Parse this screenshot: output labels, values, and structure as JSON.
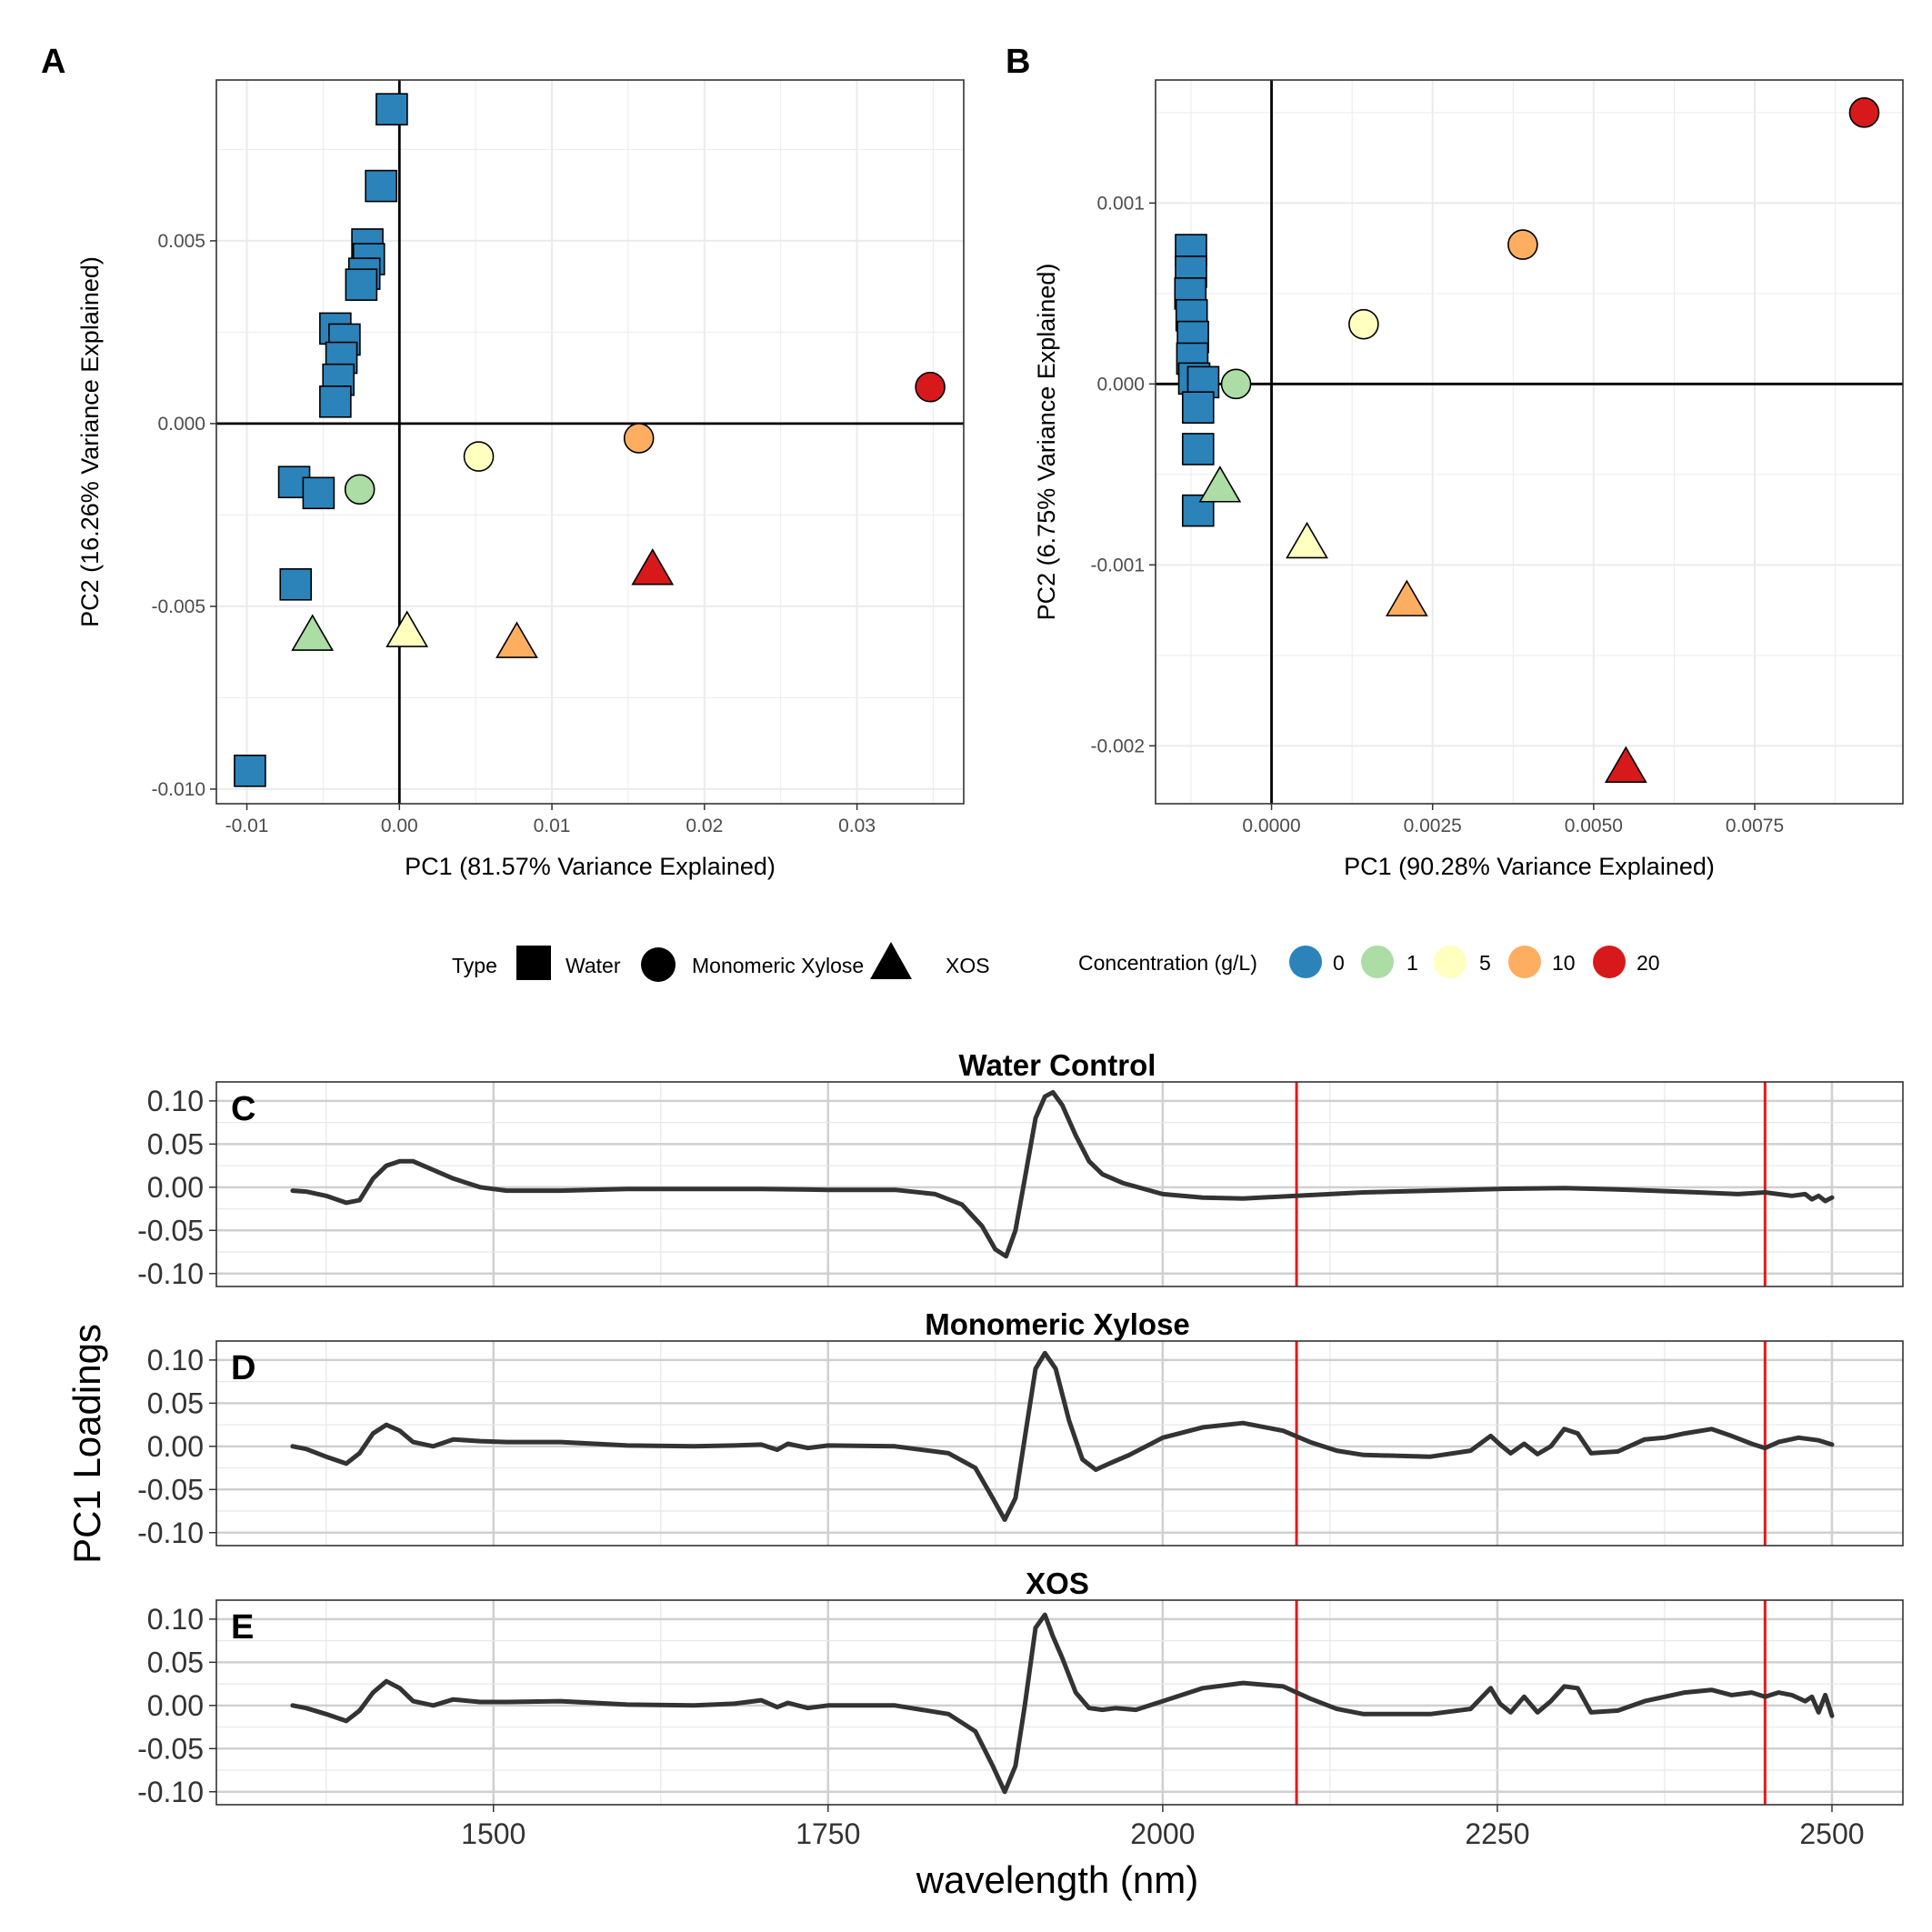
{
  "colors": {
    "conc_0": "#2b83ba",
    "conc_1": "#abdda4",
    "conc_5": "#ffffbf",
    "conc_10": "#fdae61",
    "conc_20": "#d7191c",
    "loading_line": "#333333",
    "marker_line": "#e31a1c"
  },
  "legend": {
    "type_title": "Type",
    "type_items": [
      {
        "label": "Water",
        "shape": "square"
      },
      {
        "label": "Monomeric Xylose",
        "shape": "circle"
      },
      {
        "label": "XOS",
        "shape": "triangle"
      }
    ],
    "conc_title": "Concentration (g/L)",
    "conc_items": [
      {
        "label": "0",
        "key": "conc_0"
      },
      {
        "label": "1",
        "key": "conc_1"
      },
      {
        "label": "5",
        "key": "conc_5"
      },
      {
        "label": "10",
        "key": "conc_10"
      },
      {
        "label": "20",
        "key": "conc_20"
      }
    ]
  },
  "chart_data": [
    {
      "panel": "A",
      "type": "scatter",
      "xlabel": "PC1 (81.57% Variance Explained)",
      "ylabel": "PC2 (16.26% Variance Explained)",
      "xlim": [
        -0.012,
        0.037
      ],
      "ylim": [
        -0.0104,
        0.0094
      ],
      "xticks": [
        -0.01,
        0.0,
        0.01,
        0.02,
        0.03
      ],
      "xtick_labels": [
        "-0.01",
        "0.00",
        "0.01",
        "0.02",
        "0.03"
      ],
      "yticks": [
        -0.01,
        -0.005,
        0.0,
        0.005
      ],
      "ytick_labels": [
        "-0.010",
        "-0.005",
        "0.000",
        "0.005"
      ],
      "grid": true,
      "points": [
        {
          "x": -0.0005,
          "y": 0.0086,
          "type": "Water",
          "conc": "0"
        },
        {
          "x": -0.0012,
          "y": 0.0065,
          "type": "Water",
          "conc": "0"
        },
        {
          "x": -0.0021,
          "y": 0.0049,
          "type": "Water",
          "conc": "0"
        },
        {
          "x": -0.002,
          "y": 0.0045,
          "type": "Water",
          "conc": "0"
        },
        {
          "x": -0.0023,
          "y": 0.0041,
          "type": "Water",
          "conc": "0"
        },
        {
          "x": -0.0025,
          "y": 0.0038,
          "type": "Water",
          "conc": "0"
        },
        {
          "x": -0.0042,
          "y": 0.0026,
          "type": "Water",
          "conc": "0"
        },
        {
          "x": -0.0036,
          "y": 0.0023,
          "type": "Water",
          "conc": "0"
        },
        {
          "x": -0.0038,
          "y": 0.0018,
          "type": "Water",
          "conc": "0"
        },
        {
          "x": -0.004,
          "y": 0.0012,
          "type": "Water",
          "conc": "0"
        },
        {
          "x": -0.0042,
          "y": 0.0006,
          "type": "Water",
          "conc": "0"
        },
        {
          "x": -0.0069,
          "y": -0.0016,
          "type": "Water",
          "conc": "0"
        },
        {
          "x": -0.0053,
          "y": -0.0019,
          "type": "Water",
          "conc": "0"
        },
        {
          "x": -0.0068,
          "y": -0.0044,
          "type": "Water",
          "conc": "0"
        },
        {
          "x": -0.0098,
          "y": -0.0095,
          "type": "Water",
          "conc": "0"
        },
        {
          "x": -0.0026,
          "y": -0.0018,
          "type": "Monomeric Xylose",
          "conc": "1"
        },
        {
          "x": 0.0052,
          "y": -0.0009,
          "type": "Monomeric Xylose",
          "conc": "5"
        },
        {
          "x": 0.0157,
          "y": -0.0004,
          "type": "Monomeric Xylose",
          "conc": "10"
        },
        {
          "x": 0.0348,
          "y": 0.001,
          "type": "Monomeric Xylose",
          "conc": "20"
        },
        {
          "x": -0.0057,
          "y": -0.0058,
          "type": "XOS",
          "conc": "1"
        },
        {
          "x": 0.0005,
          "y": -0.0057,
          "type": "XOS",
          "conc": "5"
        },
        {
          "x": 0.0077,
          "y": -0.006,
          "type": "XOS",
          "conc": "10"
        },
        {
          "x": 0.0166,
          "y": -0.004,
          "type": "XOS",
          "conc": "20"
        }
      ]
    },
    {
      "panel": "B",
      "type": "scatter",
      "xlabel": "PC1 (90.28% Variance Explained)",
      "ylabel": "PC2 (6.75% Variance Explained)",
      "xlim": [
        -0.0018,
        0.0098
      ],
      "ylim": [
        -0.00232,
        0.00168
      ],
      "xticks": [
        0.0,
        0.0025,
        0.005,
        0.0075
      ],
      "xtick_labels": [
        "0.0000",
        "0.0025",
        "0.0050",
        "0.0075"
      ],
      "yticks": [
        -0.002,
        -0.001,
        0.0,
        0.001
      ],
      "ytick_labels": [
        "-0.002",
        "-0.001",
        "0.000",
        "0.001"
      ],
      "grid": true,
      "points": [
        {
          "x": -0.00125,
          "y": 0.00074,
          "type": "Water",
          "conc": "0"
        },
        {
          "x": -0.00125,
          "y": 0.00062,
          "type": "Water",
          "conc": "0"
        },
        {
          "x": -0.00126,
          "y": 0.0005,
          "type": "Water",
          "conc": "0"
        },
        {
          "x": -0.00124,
          "y": 0.00038,
          "type": "Water",
          "conc": "0"
        },
        {
          "x": -0.00122,
          "y": 0.00026,
          "type": "Water",
          "conc": "0"
        },
        {
          "x": -0.00123,
          "y": 0.00014,
          "type": "Water",
          "conc": "0"
        },
        {
          "x": -0.0012,
          "y": 3e-05,
          "type": "Water",
          "conc": "0"
        },
        {
          "x": -0.00106,
          "y": 1e-05,
          "type": "Water",
          "conc": "0"
        },
        {
          "x": -0.00114,
          "y": -0.00013,
          "type": "Water",
          "conc": "0"
        },
        {
          "x": -0.00114,
          "y": -0.00036,
          "type": "Water",
          "conc": "0"
        },
        {
          "x": -0.00114,
          "y": -0.0007,
          "type": "Water",
          "conc": "0"
        },
        {
          "x": -0.00055,
          "y": 0.0,
          "type": "Monomeric Xylose",
          "conc": "1"
        },
        {
          "x": 0.00143,
          "y": 0.00033,
          "type": "Monomeric Xylose",
          "conc": "5"
        },
        {
          "x": 0.0039,
          "y": 0.00077,
          "type": "Monomeric Xylose",
          "conc": "10"
        },
        {
          "x": 0.0092,
          "y": 0.0015,
          "type": "Monomeric Xylose",
          "conc": "20"
        },
        {
          "x": -0.0008,
          "y": -0.00057,
          "type": "XOS",
          "conc": "1"
        },
        {
          "x": 0.00055,
          "y": -0.00088,
          "type": "XOS",
          "conc": "5"
        },
        {
          "x": 0.0021,
          "y": -0.0012,
          "type": "XOS",
          "conc": "10"
        },
        {
          "x": 0.0055,
          "y": -0.00212,
          "type": "XOS",
          "conc": "20"
        }
      ]
    },
    {
      "panel": "C",
      "type": "line",
      "title": "Water Control",
      "xlim": [
        1293,
        2553
      ],
      "ylim": [
        -0.115,
        0.122
      ],
      "yticks": [
        -0.1,
        -0.05,
        0.0,
        0.05,
        0.1
      ],
      "ytick_labels": [
        "-0.10",
        "-0.05",
        "0.00",
        "0.05",
        "0.10"
      ],
      "vlines": [
        2100,
        2450
      ],
      "x": [
        1350,
        1360,
        1375,
        1390,
        1400,
        1410,
        1420,
        1430,
        1440,
        1455,
        1470,
        1490,
        1510,
        1550,
        1600,
        1650,
        1700,
        1750,
        1800,
        1830,
        1850,
        1865,
        1875,
        1883,
        1890,
        1897,
        1905,
        1912,
        1918,
        1925,
        1935,
        1945,
        1955,
        1970,
        2000,
        2030,
        2060,
        2100,
        2150,
        2200,
        2250,
        2300,
        2350,
        2400,
        2430,
        2450,
        2470,
        2480,
        2485,
        2490,
        2495,
        2500
      ],
      "values": [
        -0.004,
        -0.005,
        -0.01,
        -0.018,
        -0.015,
        0.01,
        0.025,
        0.03,
        0.03,
        0.02,
        0.01,
        0.0,
        -0.004,
        -0.004,
        -0.002,
        -0.002,
        -0.002,
        -0.003,
        -0.003,
        -0.008,
        -0.02,
        -0.045,
        -0.072,
        -0.08,
        -0.05,
        0.01,
        0.08,
        0.105,
        0.11,
        0.095,
        0.06,
        0.03,
        0.015,
        0.005,
        -0.008,
        -0.012,
        -0.013,
        -0.01,
        -0.006,
        -0.004,
        -0.002,
        -0.001,
        -0.003,
        -0.006,
        -0.008,
        -0.006,
        -0.01,
        -0.008,
        -0.014,
        -0.01,
        -0.016,
        -0.012
      ]
    },
    {
      "panel": "D",
      "type": "line",
      "title": "Monomeric Xylose",
      "xlim": [
        1293,
        2553
      ],
      "ylim": [
        -0.115,
        0.122
      ],
      "yticks": [
        -0.1,
        -0.05,
        0.0,
        0.05,
        0.1
      ],
      "ytick_labels": [
        "-0.10",
        "-0.05",
        "0.00",
        "0.05",
        "0.10"
      ],
      "vlines": [
        2100,
        2450
      ],
      "x": [
        1350,
        1360,
        1375,
        1390,
        1400,
        1410,
        1420,
        1430,
        1440,
        1455,
        1470,
        1490,
        1510,
        1550,
        1600,
        1650,
        1680,
        1700,
        1712,
        1720,
        1735,
        1750,
        1800,
        1840,
        1860,
        1873,
        1882,
        1890,
        1897,
        1905,
        1912,
        1920,
        1930,
        1940,
        1950,
        1960,
        1975,
        2000,
        2030,
        2060,
        2090,
        2110,
        2130,
        2150,
        2200,
        2230,
        2245,
        2252,
        2260,
        2270,
        2280,
        2290,
        2300,
        2310,
        2320,
        2340,
        2360,
        2375,
        2390,
        2410,
        2425,
        2440,
        2450,
        2460,
        2475,
        2490,
        2500
      ],
      "values": [
        0.0,
        -0.003,
        -0.012,
        -0.02,
        -0.008,
        0.015,
        0.025,
        0.018,
        0.005,
        0.0,
        0.008,
        0.006,
        0.005,
        0.005,
        0.001,
        0.0,
        0.001,
        0.002,
        -0.004,
        0.003,
        -0.002,
        0.001,
        0.0,
        -0.008,
        -0.025,
        -0.06,
        -0.085,
        -0.06,
        0.01,
        0.09,
        0.108,
        0.09,
        0.03,
        -0.015,
        -0.027,
        -0.02,
        -0.01,
        0.01,
        0.022,
        0.027,
        0.018,
        0.005,
        -0.005,
        -0.01,
        -0.012,
        -0.005,
        0.012,
        0.002,
        -0.008,
        0.003,
        -0.009,
        0.0,
        0.02,
        0.015,
        -0.008,
        -0.006,
        0.008,
        0.01,
        0.015,
        0.02,
        0.012,
        0.003,
        -0.002,
        0.005,
        0.01,
        0.007,
        0.002
      ]
    },
    {
      "panel": "E",
      "type": "line",
      "title": "XOS",
      "xlim": [
        1293,
        2553
      ],
      "ylim": [
        -0.115,
        0.122
      ],
      "yticks": [
        -0.1,
        -0.05,
        0.0,
        0.05,
        0.1
      ],
      "ytick_labels": [
        "-0.10",
        "-0.05",
        "0.00",
        "0.05",
        "0.10"
      ],
      "vlines": [
        2100,
        2450
      ],
      "x": [
        1350,
        1360,
        1375,
        1390,
        1400,
        1410,
        1420,
        1430,
        1440,
        1455,
        1470,
        1490,
        1510,
        1550,
        1600,
        1650,
        1680,
        1700,
        1712,
        1720,
        1735,
        1750,
        1800,
        1840,
        1860,
        1873,
        1882,
        1890,
        1897,
        1905,
        1912,
        1918,
        1925,
        1935,
        1945,
        1955,
        1965,
        1980,
        2000,
        2030,
        2060,
        2090,
        2110,
        2130,
        2150,
        2200,
        2230,
        2245,
        2252,
        2260,
        2270,
        2280,
        2290,
        2300,
        2310,
        2320,
        2340,
        2360,
        2375,
        2390,
        2410,
        2425,
        2440,
        2450,
        2460,
        2470,
        2480,
        2485,
        2490,
        2495,
        2500
      ],
      "values": [
        0.0,
        -0.003,
        -0.01,
        -0.018,
        -0.006,
        0.015,
        0.028,
        0.02,
        0.005,
        0.0,
        0.007,
        0.004,
        0.004,
        0.005,
        0.001,
        0.0,
        0.002,
        0.006,
        -0.002,
        0.003,
        -0.003,
        0.0,
        0.0,
        -0.01,
        -0.03,
        -0.07,
        -0.1,
        -0.07,
        0.0,
        0.09,
        0.105,
        0.08,
        0.055,
        0.015,
        -0.003,
        -0.005,
        -0.003,
        -0.005,
        0.005,
        0.02,
        0.026,
        0.022,
        0.008,
        -0.004,
        -0.01,
        -0.01,
        -0.004,
        0.02,
        0.002,
        -0.008,
        0.01,
        -0.008,
        0.005,
        0.022,
        0.02,
        -0.008,
        -0.006,
        0.005,
        0.01,
        0.015,
        0.018,
        0.012,
        0.015,
        0.01,
        0.015,
        0.012,
        0.005,
        0.01,
        -0.008,
        0.012,
        -0.012
      ]
    }
  ],
  "loadings_axis": {
    "xlabel": "wavelength (nm)",
    "ylabel": "PC1 Loadings",
    "xticks": [
      1500,
      1750,
      2000,
      2250,
      2500
    ],
    "xtick_labels": [
      "1500",
      "1750",
      "2000",
      "2250",
      "2500"
    ]
  }
}
